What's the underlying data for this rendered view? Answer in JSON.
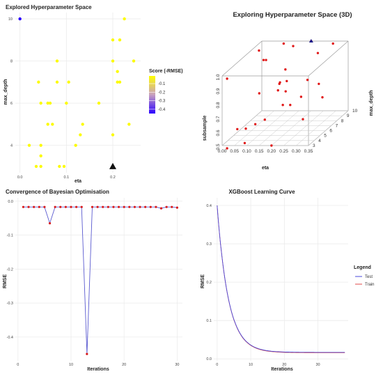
{
  "chart_data": [
    {
      "id": "explored-space",
      "type": "scatter",
      "title": "Explored Hyperparameter Space",
      "xlabel": "eta",
      "ylabel": "max_depth",
      "xlim": [
        -0.01,
        0.26
      ],
      "ylim": [
        2.7,
        10.3
      ],
      "xticks": [
        "0.0",
        "0.1",
        "0.2"
      ],
      "xtick_values": [
        0,
        0.1,
        0.2
      ],
      "yticks": [
        "4",
        "6",
        "8",
        "10"
      ],
      "ytick_values": [
        4,
        6,
        8,
        10
      ],
      "grid": true,
      "legend": {
        "title": "Score (-RMSE)",
        "placement": "right",
        "labels": [
          "-0.1",
          "-0.2",
          "-0.3",
          "-0.4"
        ],
        "values": [
          -0.1,
          -0.2,
          -0.3,
          -0.4
        ]
      },
      "color_scale": {
        "low": "#2b00ff",
        "high": "#ffff00",
        "min": -0.45,
        "max": -0.01
      },
      "points": [
        {
          "x": 0.0,
          "y": 10,
          "score": -0.45
        },
        {
          "x": 0.225,
          "y": 10,
          "score": -0.017
        },
        {
          "x": 0.2,
          "y": 9,
          "score": -0.017
        },
        {
          "x": 0.215,
          "y": 9,
          "score": -0.017
        },
        {
          "x": 0.08,
          "y": 8,
          "score": -0.017
        },
        {
          "x": 0.2,
          "y": 8,
          "score": -0.017
        },
        {
          "x": 0.245,
          "y": 8,
          "score": -0.017
        },
        {
          "x": 0.21,
          "y": 7.5,
          "score": -0.017
        },
        {
          "x": 0.04,
          "y": 7,
          "score": -0.017
        },
        {
          "x": 0.08,
          "y": 7,
          "score": -0.017
        },
        {
          "x": 0.105,
          "y": 7,
          "score": -0.017
        },
        {
          "x": 0.21,
          "y": 7,
          "score": -0.017
        },
        {
          "x": 0.215,
          "y": 7,
          "score": -0.017
        },
        {
          "x": 0.045,
          "y": 6,
          "score": -0.017
        },
        {
          "x": 0.06,
          "y": 6,
          "score": -0.017
        },
        {
          "x": 0.065,
          "y": 6,
          "score": -0.017
        },
        {
          "x": 0.1,
          "y": 6,
          "score": -0.017
        },
        {
          "x": 0.17,
          "y": 6,
          "score": -0.017
        },
        {
          "x": 0.06,
          "y": 5,
          "score": -0.017
        },
        {
          "x": 0.07,
          "y": 5,
          "score": -0.017
        },
        {
          "x": 0.135,
          "y": 5,
          "score": -0.017
        },
        {
          "x": 0.235,
          "y": 5,
          "score": -0.017
        },
        {
          "x": 0.13,
          "y": 4.5,
          "score": -0.017
        },
        {
          "x": 0.2,
          "y": 4.5,
          "score": -0.017
        },
        {
          "x": 0.02,
          "y": 4,
          "score": -0.017
        },
        {
          "x": 0.045,
          "y": 4,
          "score": -0.017
        },
        {
          "x": 0.12,
          "y": 4,
          "score": -0.017
        },
        {
          "x": 0.045,
          "y": 3.5,
          "score": -0.017
        },
        {
          "x": 0.035,
          "y": 3,
          "score": -0.017
        },
        {
          "x": 0.045,
          "y": 3,
          "score": -0.017
        },
        {
          "x": 0.085,
          "y": 3,
          "score": -0.017
        },
        {
          "x": 0.095,
          "y": 3,
          "score": -0.017
        }
      ],
      "best": {
        "x": 0.2,
        "y": 3
      }
    },
    {
      "id": "space-3d",
      "type": "scatter",
      "title": "Exploring Hyperparameter Space (3D)",
      "xlabel": "eta",
      "ylabel": "subsample",
      "zlabel": "max_depth",
      "xticks": [
        "0.00",
        "0.05",
        "0.10",
        "0.15",
        "0.20",
        "0.25",
        "0.30",
        "0.35"
      ],
      "xtick_values": [
        0,
        0.05,
        0.1,
        0.15,
        0.2,
        0.25,
        0.3,
        0.35
      ],
      "yticks": [
        "0.5",
        "0.6",
        "0.7",
        "0.8",
        "0.9",
        "1.0"
      ],
      "ytick_values": [
        0.5,
        0.6,
        0.7,
        0.8,
        0.9,
        1.0
      ],
      "zticks": [
        "3",
        "4",
        "5",
        "6",
        "7",
        "8",
        "9",
        "10"
      ],
      "ztick_values": [
        3,
        4,
        5,
        6,
        7,
        8,
        9,
        10
      ],
      "points": [
        {
          "x": 0.0,
          "y": 0.95,
          "z": 9.5
        },
        {
          "x": 0.03,
          "y": 0.9,
          "z": 9.0
        },
        {
          "x": 0.04,
          "y": 0.9,
          "z": 9.0
        },
        {
          "x": 0.1,
          "y": 1.0,
          "z": 9.5
        },
        {
          "x": 0.15,
          "y": 1.0,
          "z": 9.0
        },
        {
          "x": 0.13,
          "y": 0.85,
          "z": 8.5
        },
        {
          "x": 0.14,
          "y": 0.8,
          "z": 7.0
        },
        {
          "x": 0.17,
          "y": 0.82,
          "z": 7.0
        },
        {
          "x": 0.2,
          "y": 0.9,
          "z": 4.5
        },
        {
          "x": 0.25,
          "y": 0.95,
          "z": 9.0
        },
        {
          "x": 0.3,
          "y": 1.0,
          "z": 9.5
        },
        {
          "x": 0.2,
          "y": 0.8,
          "z": 5.5
        },
        {
          "x": 0.07,
          "y": 0.75,
          "z": 6.5
        },
        {
          "x": 0.1,
          "y": 0.7,
          "z": 8.5
        },
        {
          "x": 0.2,
          "y": 1.0,
          "z": 10.0
        },
        {
          "x": 0.3,
          "y": 0.8,
          "z": 7.0
        },
        {
          "x": 0.15,
          "y": 0.65,
          "z": 4.0
        },
        {
          "x": 0.2,
          "y": 0.72,
          "z": 5.0
        },
        {
          "x": 0.23,
          "y": 0.72,
          "z": 5.0
        },
        {
          "x": 0.1,
          "y": 0.6,
          "z": 4.5
        },
        {
          "x": 0.28,
          "y": 0.65,
          "z": 8.5
        },
        {
          "x": 0.05,
          "y": 0.55,
          "z": 5.0
        },
        {
          "x": 0.08,
          "y": 0.5,
          "z": 3.5
        },
        {
          "x": 0.02,
          "y": 0.48,
          "z": 3.0
        },
        {
          "x": 0.2,
          "y": 0.5,
          "z": 3.0
        },
        {
          "x": 0.27,
          "y": 0.6,
          "z": 5.5
        },
        {
          "x": 0.3,
          "y": 0.9,
          "z": 5.0
        },
        {
          "x": 0.32,
          "y": 0.85,
          "z": 3.0
        },
        {
          "x": 0.05,
          "y": 0.6,
          "z": 3.5
        },
        {
          "x": 0.02,
          "y": 0.98,
          "z": 3.0
        }
      ],
      "best": {
        "x": 0.2,
        "y": 1.0,
        "z": 10
      }
    },
    {
      "id": "convergence",
      "type": "line",
      "title": "Convergence of Bayesian Optimisation",
      "xlabel": "Iterations",
      "ylabel": "RMSE",
      "xlim": [
        -0.5,
        31
      ],
      "ylim": [
        -0.47,
        0.01
      ],
      "xticks": [
        "0",
        "10",
        "20",
        "30"
      ],
      "xtick_values": [
        0,
        10,
        20,
        30
      ],
      "yticks": [
        "0.0",
        "-0.1",
        "-0.2",
        "-0.3",
        "-0.4"
      ],
      "ytick_values": [
        0,
        -0.1,
        -0.2,
        -0.3,
        -0.4
      ],
      "grid": true,
      "x": [
        1,
        2,
        3,
        4,
        5,
        6,
        7,
        8,
        9,
        10,
        11,
        12,
        13,
        14,
        15,
        16,
        17,
        18,
        19,
        20,
        21,
        22,
        23,
        24,
        25,
        26,
        27,
        28,
        29,
        30
      ],
      "values": [
        -0.017,
        -0.017,
        -0.017,
        -0.017,
        -0.017,
        -0.065,
        -0.017,
        -0.017,
        -0.017,
        -0.017,
        -0.017,
        -0.017,
        -0.45,
        -0.017,
        -0.017,
        -0.017,
        -0.017,
        -0.017,
        -0.017,
        -0.017,
        -0.017,
        -0.017,
        -0.017,
        -0.017,
        -0.017,
        -0.017,
        -0.021,
        -0.017,
        -0.017,
        -0.019
      ]
    },
    {
      "id": "learning-curve",
      "type": "line",
      "title": "XGBoost Learning Curve",
      "xlabel": "Iterations",
      "ylabel": "RMSE",
      "xlim": [
        -1,
        39
      ],
      "ylim": [
        -0.005,
        0.42
      ],
      "xticks": [
        "0",
        "10",
        "20",
        "30"
      ],
      "xtick_values": [
        0,
        10,
        20,
        30
      ],
      "yticks": [
        "0.0",
        "0.1",
        "0.2",
        "0.3",
        "0.4"
      ],
      "ytick_values": [
        0,
        0.1,
        0.2,
        0.3,
        0.4
      ],
      "grid": true,
      "legend": {
        "title": "Legend",
        "placement": "right"
      },
      "series": [
        {
          "name": "Test",
          "color": "#4a4adb",
          "start": 0.4,
          "floor": 0.017,
          "rate": 0.3,
          "n": 38
        },
        {
          "name": "Train",
          "color": "#e04848",
          "start": 0.4,
          "floor": 0.016,
          "rate": 0.3,
          "n": 38
        }
      ]
    }
  ]
}
